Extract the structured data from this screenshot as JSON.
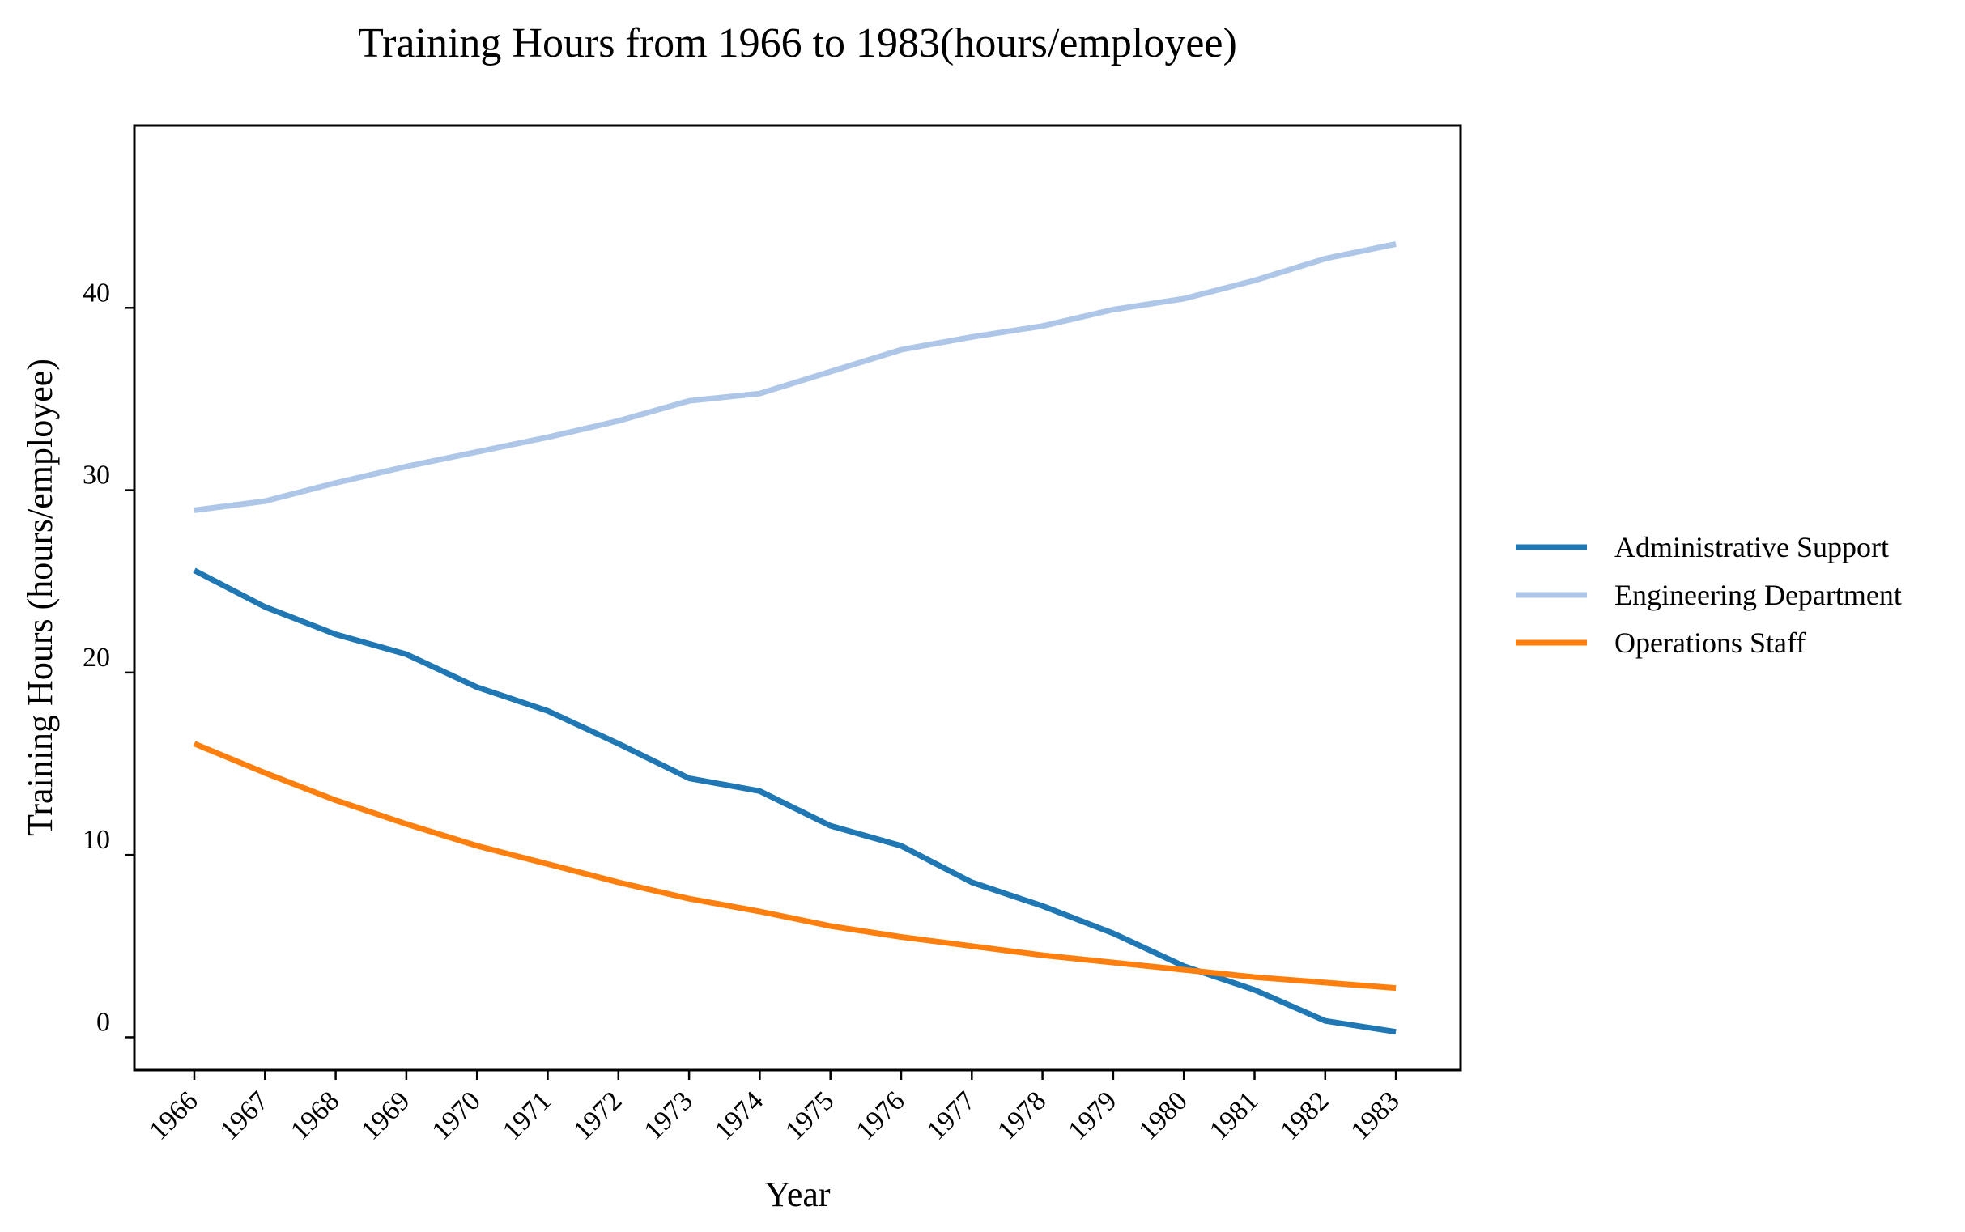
{
  "chart_data": {
    "type": "line",
    "title": "Training Hours from 1966 to 1983(hours/employee)",
    "xlabel": "Year",
    "ylabel": "Training Hours (hours/employee)",
    "x": [
      "1966",
      "1967",
      "1968",
      "1969",
      "1970",
      "1971",
      "1972",
      "1973",
      "1974",
      "1975",
      "1976",
      "1977",
      "1978",
      "1979",
      "1980",
      "1981",
      "1982",
      "1983"
    ],
    "ylim": [
      -1.8,
      50
    ],
    "yticks": [
      0,
      10,
      20,
      30,
      40
    ],
    "grid": false,
    "legend_position": "right",
    "series": [
      {
        "name": "Administrative Support",
        "color": "#1f77b4",
        "values": [
          25.6,
          23.6,
          22.1,
          21.0,
          19.2,
          17.9,
          16.1,
          14.2,
          13.5,
          11.6,
          10.5,
          8.5,
          7.2,
          5.7,
          3.9,
          2.6,
          0.9,
          0.3
        ]
      },
      {
        "name": "Engineering Department",
        "color": "#aec7e8",
        "values": [
          28.9,
          29.4,
          30.4,
          31.3,
          32.1,
          32.9,
          33.8,
          34.9,
          35.3,
          36.5,
          37.7,
          38.4,
          39.0,
          39.9,
          40.5,
          41.5,
          42.7,
          43.5
        ]
      },
      {
        "name": "Operations Staff",
        "color": "#ff7f0e",
        "values": [
          16.1,
          14.5,
          13.0,
          11.7,
          10.5,
          9.5,
          8.5,
          7.6,
          6.9,
          6.1,
          5.5,
          5.0,
          4.5,
          4.1,
          3.7,
          3.3,
          3.0,
          2.7
        ]
      }
    ]
  }
}
